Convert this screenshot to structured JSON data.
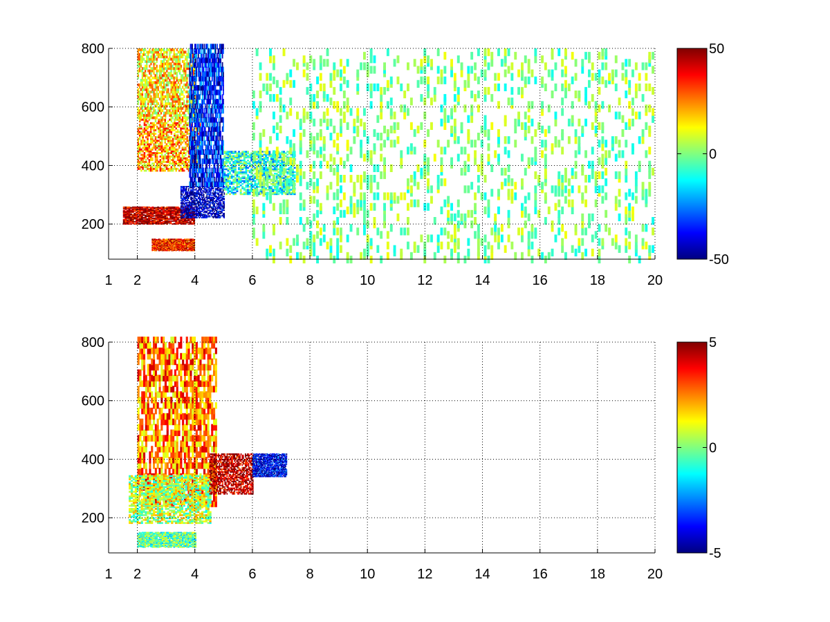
{
  "chart_data": [
    {
      "type": "heatmap",
      "title": "",
      "xlabel": "",
      "ylabel": "",
      "xlim": [
        1,
        20
      ],
      "ylim": [
        80,
        800
      ],
      "grid": true,
      "x_ticks": [
        "1",
        "2",
        "4",
        "6",
        "8",
        "10",
        "12",
        "14",
        "16",
        "18",
        "20"
      ],
      "x_tick_values": [
        1,
        2,
        4,
        6,
        8,
        10,
        12,
        14,
        16,
        18,
        20
      ],
      "y_ticks": [
        "200",
        "400",
        "600",
        "800"
      ],
      "y_tick_values": [
        200,
        400,
        600,
        800
      ],
      "colorbar": {
        "colormap": "jet",
        "clim": [
          -50,
          50
        ],
        "ticks": [
          "50",
          "0",
          "-50"
        ],
        "tick_values": [
          50,
          0,
          -50
        ]
      },
      "features": [
        {
          "x": [
            1.5,
            4.0
          ],
          "y": [
            200,
            260
          ],
          "value": 45
        },
        {
          "x": [
            2.0,
            4.2
          ],
          "y": [
            380,
            560
          ],
          "value": 20
        },
        {
          "x": [
            2.0,
            4.0
          ],
          "y": [
            560,
            800
          ],
          "value": 15
        },
        {
          "x": [
            3.5,
            5.0
          ],
          "y": [
            220,
            330
          ],
          "value": -45
        },
        {
          "x": [
            3.8,
            5.0
          ],
          "y": [
            330,
            800
          ],
          "value": -35
        },
        {
          "x": [
            2.5,
            4.0
          ],
          "y": [
            110,
            150
          ],
          "value": 35
        },
        {
          "x": [
            5.0,
            7.5
          ],
          "y": [
            300,
            450
          ],
          "value": -10
        },
        {
          "x": [
            6.0,
            20.0
          ],
          "y": [
            80,
            800
          ],
          "value": 0
        }
      ]
    },
    {
      "type": "heatmap",
      "title": "",
      "xlabel": "",
      "ylabel": "",
      "xlim": [
        1,
        20
      ],
      "ylim": [
        80,
        800
      ],
      "grid": true,
      "x_ticks": [
        "1",
        "2",
        "4",
        "6",
        "8",
        "10",
        "12",
        "14",
        "16",
        "18",
        "20"
      ],
      "x_tick_values": [
        1,
        2,
        4,
        6,
        8,
        10,
        12,
        14,
        16,
        18,
        20
      ],
      "y_ticks": [
        "200",
        "400",
        "600",
        "800"
      ],
      "y_tick_values": [
        200,
        400,
        600,
        800
      ],
      "colorbar": {
        "colormap": "jet",
        "clim": [
          -5,
          5
        ],
        "ticks": [
          "5",
          "0",
          "-5"
        ],
        "tick_values": [
          5,
          0,
          -5
        ]
      },
      "features": [
        {
          "x": [
            2.0,
            4.7
          ],
          "y": [
            240,
            800
          ],
          "value": 2.5
        },
        {
          "x": [
            1.7,
            4.5
          ],
          "y": [
            180,
            340
          ],
          "value": 0.5
        },
        {
          "x": [
            2.0,
            4.0
          ],
          "y": [
            100,
            150
          ],
          "value": -0.3
        },
        {
          "x": [
            4.5,
            6.0
          ],
          "y": [
            280,
            420
          ],
          "value": 4.5
        },
        {
          "x": [
            6.0,
            7.2
          ],
          "y": [
            340,
            420
          ],
          "value": -4.0
        }
      ]
    }
  ]
}
